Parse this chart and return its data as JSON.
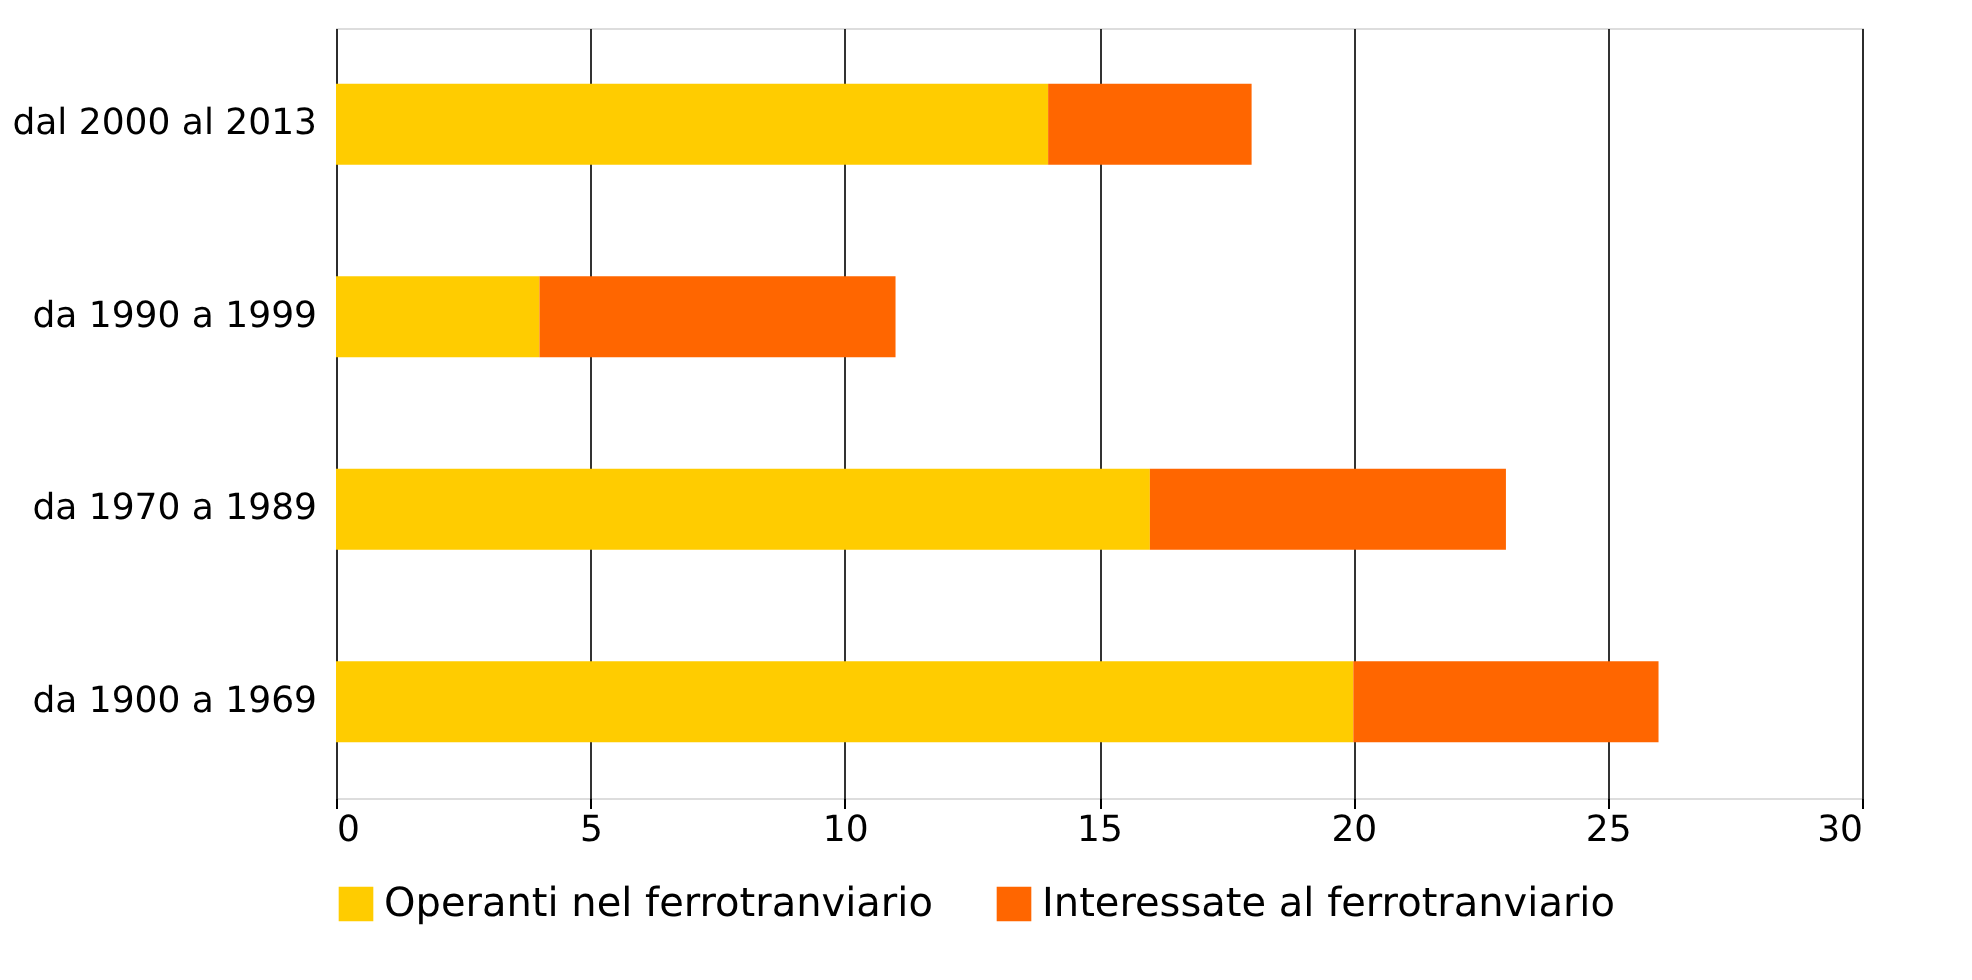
{
  "chart_data": {
    "type": "bar",
    "orientation": "horizontal",
    "stacked": true,
    "categories": [
      "dal 2000 al 2013",
      "da 1990 a 1999",
      "da 1970 a 1989",
      "da 1900 a 1969"
    ],
    "series": [
      {
        "name": "Operanti nel ferrotranviario",
        "color": "#ffcc00",
        "values": [
          14,
          4,
          16,
          20
        ]
      },
      {
        "name": "Interessate al ferrotranviario",
        "color": "#ff6600",
        "values": [
          4,
          7,
          7,
          6
        ]
      }
    ],
    "xlim": [
      0,
      30
    ],
    "xticks": [
      0,
      5,
      10,
      15,
      20,
      25,
      30
    ],
    "grid": "x",
    "legend": "bottom"
  }
}
